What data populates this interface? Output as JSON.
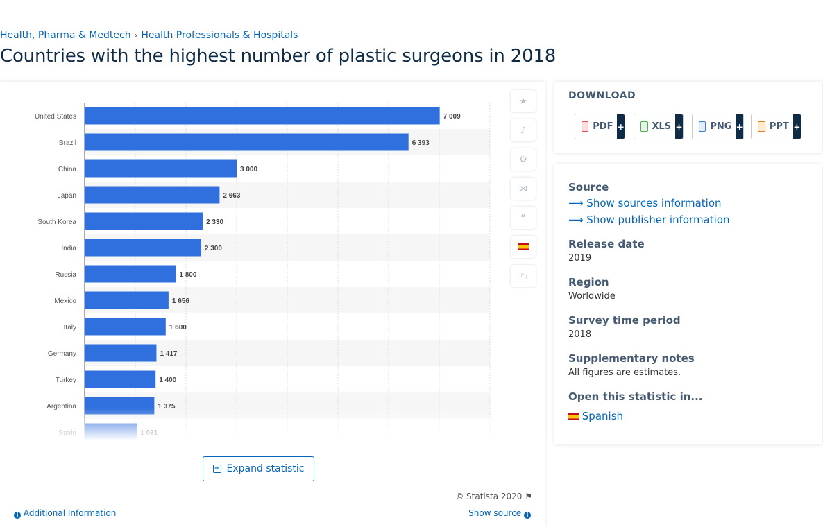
{
  "breadcrumb": {
    "item1": "Health, Pharma & Medtech",
    "item2": "Health Professionals & Hospitals"
  },
  "page_title": "Countries with the highest number of plastic surgeons in 2018",
  "buttons": {
    "expand": "Expand statistic",
    "additional_info": "Additional Information",
    "show_source": "Show source"
  },
  "copyright": "© Statista 2020",
  "download": {
    "title": "DOWNLOAD",
    "formats": [
      "PDF",
      "XLS",
      "PNG",
      "PPT"
    ],
    "plus": "+"
  },
  "meta": {
    "source_heading": "Source",
    "show_sources": "Show sources information",
    "show_publisher": "Show publisher information",
    "release_heading": "Release date",
    "release_value": "2019",
    "region_heading": "Region",
    "region_value": "Worldwide",
    "survey_heading": "Survey time period",
    "survey_value": "2018",
    "notes_heading": "Supplementary notes",
    "notes_value": "All figures are estimates.",
    "open_heading": "Open this statistic in...",
    "open_language": "Spanish"
  },
  "colors": {
    "bar": "#2f6fde",
    "link": "#0666b6",
    "title": "#0f2b46"
  },
  "chart_data": {
    "type": "bar",
    "orientation": "horizontal",
    "categories": [
      "United States",
      "Brazil",
      "China",
      "Japan",
      "South Korea",
      "India",
      "Russia",
      "Mexico",
      "Italy",
      "Germany",
      "Turkey",
      "Argentina",
      "Spain"
    ],
    "values": [
      7009,
      6393,
      3000,
      2663,
      2330,
      2300,
      1800,
      1656,
      1600,
      1417,
      1400,
      1375,
      1031
    ],
    "value_labels": [
      "7 009",
      "6 393",
      "3 000",
      "2 663",
      "2 330",
      "2 300",
      "1 800",
      "1 656",
      "1 600",
      "1 417",
      "1 400",
      "1 375",
      "1 031"
    ],
    "xlim": [
      0,
      8000
    ],
    "grid": true,
    "title": "",
    "xlabel": "",
    "ylabel": ""
  }
}
